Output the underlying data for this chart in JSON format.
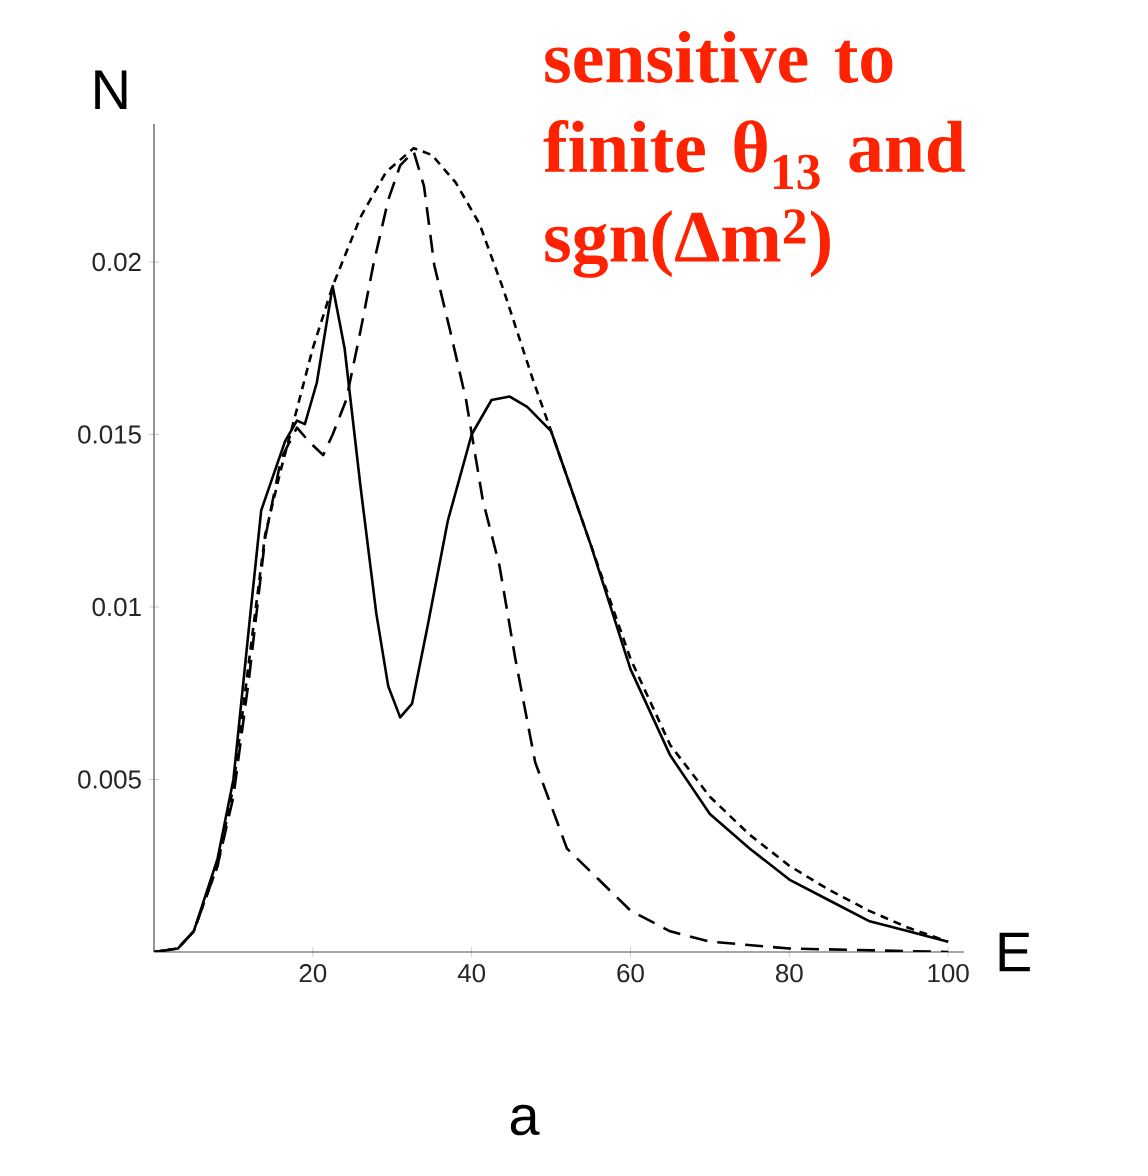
{
  "chart_data": {
    "type": "line",
    "title": "sensitive to finite θ$_{13}$ and sgn(Δm$^{2}$)",
    "xlabel": "E",
    "ylabel": "N",
    "annotations": [
      "a"
    ],
    "xlim": [
      0,
      102
    ],
    "ylim": [
      0,
      0.024
    ],
    "xticks": [
      20,
      40,
      60,
      80,
      100
    ],
    "yticks": [
      0.005,
      0.01,
      0.015,
      0.02
    ],
    "grid": false,
    "series": [
      {
        "color": "#000000",
        "line_style": "solid",
        "x": [
          0,
          3,
          5,
          8,
          10,
          12,
          13.5,
          15,
          16.5,
          18,
          19,
          20.5,
          22.5,
          24,
          26,
          28,
          29.5,
          31,
          32.5,
          34.5,
          37,
          40,
          42.5,
          44.8,
          47,
          50,
          55,
          60,
          65,
          70,
          75,
          80,
          85,
          90,
          95,
          100
        ],
        "values": [
          0,
          0.0001,
          0.0006,
          0.0027,
          0.005,
          0.0095,
          0.0128,
          0.0138,
          0.0148,
          0.0154,
          0.0153,
          0.0165,
          0.0193,
          0.0175,
          0.0135,
          0.0098,
          0.0077,
          0.0068,
          0.0072,
          0.0095,
          0.0125,
          0.015,
          0.016,
          0.0161,
          0.0158,
          0.0151,
          0.0118,
          0.0082,
          0.0057,
          0.004,
          0.003,
          0.0021,
          0.0015,
          0.0009,
          0.0006,
          0.0003
        ]
      },
      {
        "color": "#000000",
        "line_style": "dashed",
        "x": [
          0,
          3,
          5,
          8,
          10,
          12,
          14,
          16,
          18,
          19.5,
          21.3,
          22.5,
          24.2,
          26,
          27.6,
          29.5,
          31,
          32.7,
          34,
          35.3,
          37.3,
          39.3,
          41.4,
          43.5,
          45.5,
          48,
          52,
          56,
          60,
          65,
          70,
          80,
          100
        ],
        "values": [
          0,
          0.0001,
          0.0006,
          0.0025,
          0.0045,
          0.008,
          0.012,
          0.0143,
          0.0152,
          0.0148,
          0.0144,
          0.015,
          0.016,
          0.018,
          0.0199,
          0.0218,
          0.0228,
          0.0232,
          0.0222,
          0.0199,
          0.018,
          0.016,
          0.0131,
          0.0112,
          0.0085,
          0.0055,
          0.003,
          0.0021,
          0.0012,
          0.0006,
          0.0003,
          0.0001,
          0
        ]
      },
      {
        "color": "#000000",
        "line_style": "dashed",
        "x": [
          0,
          3,
          5,
          8,
          10,
          12,
          14,
          16,
          17.5,
          20,
          22.5,
          26,
          29.2,
          32.7,
          35,
          38,
          41,
          44,
          47.7,
          50,
          55,
          60,
          65,
          70,
          75,
          80,
          85,
          90,
          95,
          100
        ],
        "values": [
          0,
          0.0001,
          0.0006,
          0.0025,
          0.0048,
          0.0085,
          0.0121,
          0.014,
          0.0153,
          0.0175,
          0.0193,
          0.0213,
          0.0226,
          0.0233,
          0.0231,
          0.0223,
          0.0211,
          0.0192,
          0.0166,
          0.0151,
          0.0118,
          0.0085,
          0.006,
          0.0045,
          0.0034,
          0.0025,
          0.0018,
          0.0012,
          0.0007,
          0.0003
        ]
      }
    ]
  }
}
